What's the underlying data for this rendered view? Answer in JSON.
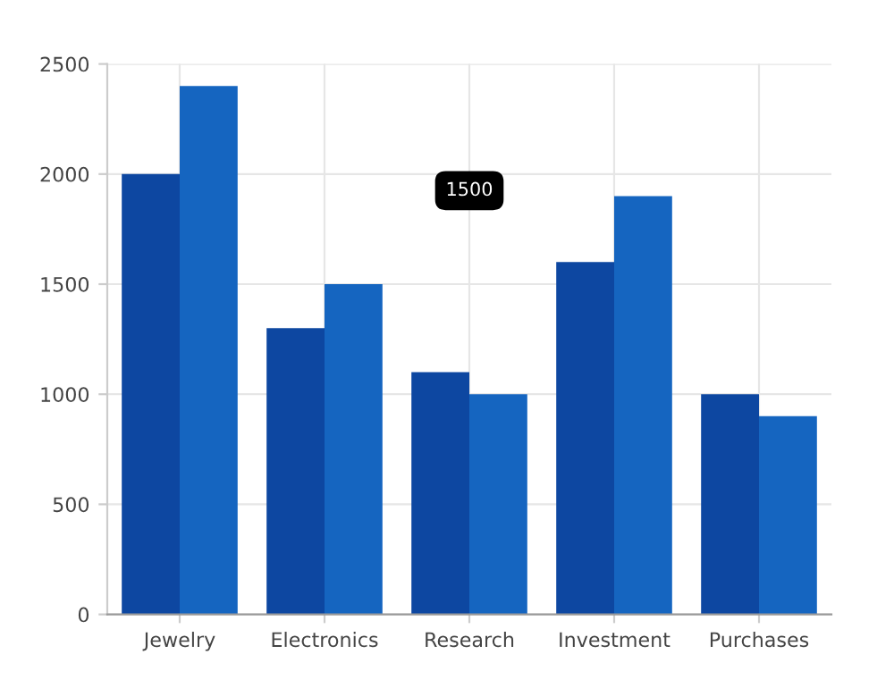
{
  "chart_data": {
    "type": "bar",
    "categories": [
      "Jewelry",
      "Electronics",
      "Research",
      "Investment",
      "Purchases"
    ],
    "series": [
      {
        "color": "#0d47a1",
        "values": [
          2000,
          1300,
          1100,
          1600,
          1000
        ]
      },
      {
        "color": "#1565c0",
        "values": [
          2400,
          1500,
          1000,
          1900,
          900
        ]
      }
    ],
    "ylim": [
      0,
      2500
    ],
    "yticks": [
      0,
      500,
      1000,
      1500,
      2000,
      2500
    ],
    "grid": true,
    "legend": false,
    "annotations": [
      "1500"
    ]
  }
}
